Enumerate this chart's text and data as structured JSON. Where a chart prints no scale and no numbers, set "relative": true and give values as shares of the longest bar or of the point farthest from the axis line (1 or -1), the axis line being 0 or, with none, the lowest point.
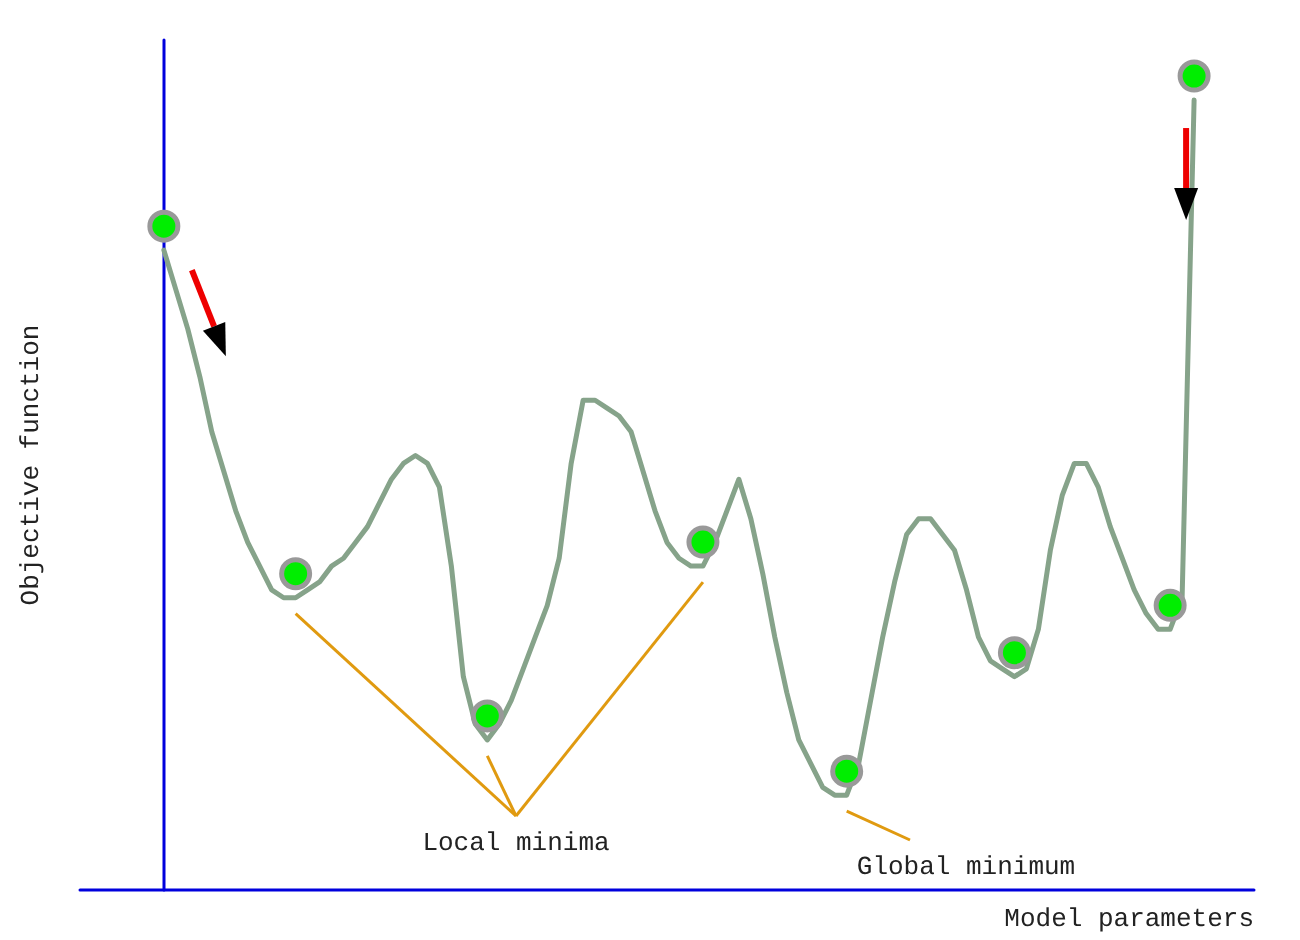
{
  "chart_data": {
    "type": "line",
    "relative": true,
    "xlabel": "Model parameters",
    "ylabel": "Objective function",
    "categories": [
      null,
      null,
      null,
      null,
      null,
      null,
      null,
      null,
      null,
      null,
      null,
      null,
      null,
      null,
      null,
      null,
      null,
      null,
      null,
      null,
      null,
      null,
      null,
      null,
      null,
      null,
      null,
      null,
      null,
      null,
      null,
      null,
      null,
      null,
      null,
      null,
      null,
      null,
      null,
      null,
      null,
      null,
      null,
      null,
      null,
      null,
      null,
      null,
      null,
      null,
      null,
      null,
      null,
      null,
      null,
      null,
      null,
      null,
      null,
      null,
      null,
      null,
      null,
      null,
      null,
      null,
      null,
      null,
      null,
      null,
      null,
      null,
      null,
      null,
      null,
      null,
      null,
      null,
      null,
      null,
      null,
      null,
      null,
      null,
      null,
      null,
      null
    ],
    "series": [
      {
        "color": "#86a38a",
        "marker": "none",
        "values": [
          0.81,
          0.76,
          0.71,
          0.65,
          0.58,
          0.53,
          0.48,
          0.44,
          0.41,
          0.38,
          0.37,
          0.37,
          0.38,
          0.39,
          0.41,
          0.42,
          0.44,
          0.46,
          0.49,
          0.52,
          0.54,
          0.55,
          0.54,
          0.51,
          0.41,
          0.27,
          0.21,
          0.19,
          0.21,
          0.24,
          0.28,
          0.32,
          0.36,
          0.42,
          0.54,
          0.62,
          0.62,
          0.61,
          0.6,
          0.58,
          0.53,
          0.48,
          0.44,
          0.42,
          0.41,
          0.41,
          0.44,
          0.48,
          0.52,
          0.47,
          0.4,
          0.32,
          0.25,
          0.19,
          0.16,
          0.13,
          0.12,
          0.12,
          0.16,
          0.24,
          0.32,
          0.39,
          0.45,
          0.47,
          0.47,
          0.45,
          0.43,
          0.38,
          0.32,
          0.29,
          0.28,
          0.27,
          0.28,
          0.33,
          0.43,
          0.5,
          0.54,
          0.54,
          0.51,
          0.46,
          0.42,
          0.38,
          0.35,
          0.33,
          0.33,
          0.37,
          1
        ]
      }
    ],
    "annotations": [
      "Local minima",
      "Global minimum"
    ],
    "grid": false
  }
}
